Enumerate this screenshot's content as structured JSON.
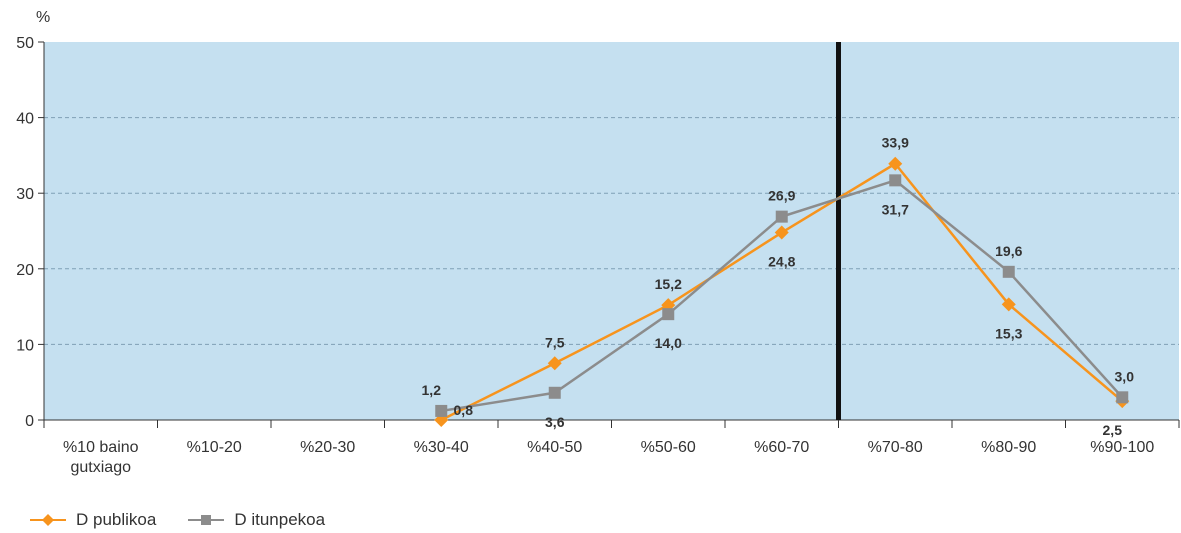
{
  "chart_data": {
    "type": "line",
    "unit_label": "%",
    "categories": [
      "%10 baino gutxiago",
      "%10-20",
      "%20-30",
      "%30-40",
      "%40-50",
      "%50-60",
      "%60-70",
      "%70-80",
      "%80-90",
      "%90-100"
    ],
    "series": [
      {
        "name": "D publikoa",
        "color": "#f7941d",
        "marker": "diamond",
        "values": [
          null,
          null,
          null,
          0,
          7.5,
          15.2,
          24.8,
          33.9,
          15.3,
          2.5
        ],
        "labels": [
          "",
          "",
          "",
          "",
          "7,5",
          "15,2",
          "24,8",
          "33,9",
          "15,3",
          "2,5"
        ]
      },
      {
        "name": "D itunpekoa",
        "color": "#8c8c8c",
        "marker": "square",
        "values": [
          null,
          null,
          null,
          1.2,
          3.6,
          14.0,
          26.9,
          31.7,
          19.6,
          3.0
        ],
        "labels": [
          "",
          "",
          "",
          "1,2",
          "3,6",
          "14,0",
          "26,9",
          "31,7",
          "19,6",
          "3,0"
        ]
      }
    ],
    "extra_labels": [
      "0,8"
    ],
    "ylim": [
      0,
      50
    ],
    "yticks": [
      0,
      10,
      20,
      30,
      40,
      50
    ],
    "grid": true,
    "background_color": "#c5e0f0",
    "reference_line_between": [
      "%60-70",
      "%70-80"
    ],
    "legend_position": "bottom-left"
  }
}
